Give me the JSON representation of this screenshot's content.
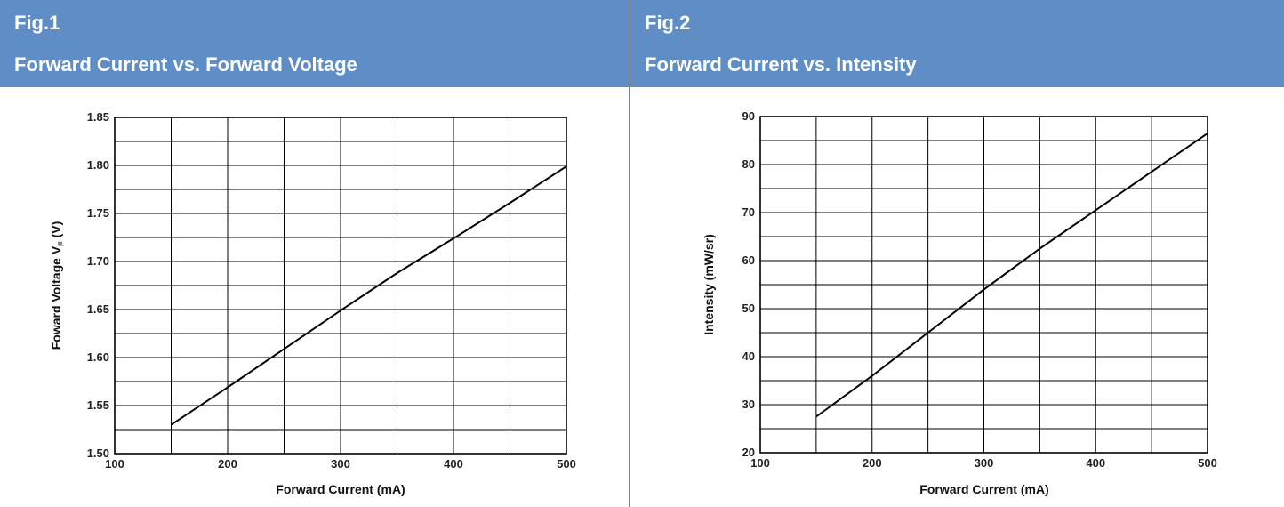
{
  "figures": [
    {
      "fig_label": "Fig.1",
      "title": "Forward Current vs. Forward Voltage"
    },
    {
      "fig_label": "Fig.2",
      "title": "Forward Current vs. Intensity"
    }
  ],
  "chart_data": [
    {
      "type": "line",
      "title": "Forward Current vs. Forward Voltage",
      "xlabel": "Forward Current (mA)",
      "ylabel": "Foward Voltage VF (V)",
      "ylabel_main": "Foward Voltage V",
      "ylabel_sub": "F",
      "ylabel_unit": " (V)",
      "xlim": [
        100,
        500
      ],
      "ylim": [
        1.5,
        1.85
      ],
      "x_ticks": [
        100,
        200,
        300,
        400,
        500
      ],
      "x_tick_labels": [
        "100",
        "200",
        "300",
        "400",
        "500"
      ],
      "y_ticks": [
        1.5,
        1.55,
        1.6,
        1.65,
        1.7,
        1.75,
        1.8,
        1.85
      ],
      "y_tick_labels": [
        "1.50",
        "1.55",
        "1.60",
        "1.65",
        "1.70",
        "1.75",
        "1.80",
        "1.85"
      ],
      "grid": true,
      "x_minor_step": 50,
      "y_minor_step": 0.025,
      "series": [
        {
          "x": [
            150,
            200,
            250,
            300,
            350,
            400,
            450,
            500
          ],
          "y": [
            1.53,
            1.569,
            1.609,
            1.649,
            1.688,
            1.724,
            1.761,
            1.799
          ]
        }
      ]
    },
    {
      "type": "line",
      "title": "Forward Current vs. Intensity",
      "xlabel": "Forward Current (mA)",
      "ylabel": "Intensity (mW/sr)",
      "xlim": [
        100,
        500
      ],
      "ylim": [
        20,
        90
      ],
      "x_ticks": [
        100,
        200,
        300,
        400,
        500
      ],
      "x_tick_labels": [
        "100",
        "200",
        "300",
        "400",
        "500"
      ],
      "y_ticks": [
        20,
        30,
        40,
        50,
        60,
        70,
        80,
        90
      ],
      "y_tick_labels": [
        "20",
        "30",
        "40",
        "50",
        "60",
        "70",
        "80",
        "90"
      ],
      "grid": true,
      "x_minor_step": 50,
      "y_minor_step": 5,
      "series": [
        {
          "x": [
            150,
            200,
            250,
            300,
            350,
            400,
            450,
            500
          ],
          "y": [
            27.5,
            36,
            45,
            54,
            62.5,
            70.5,
            78.5,
            86.5
          ]
        }
      ]
    }
  ]
}
